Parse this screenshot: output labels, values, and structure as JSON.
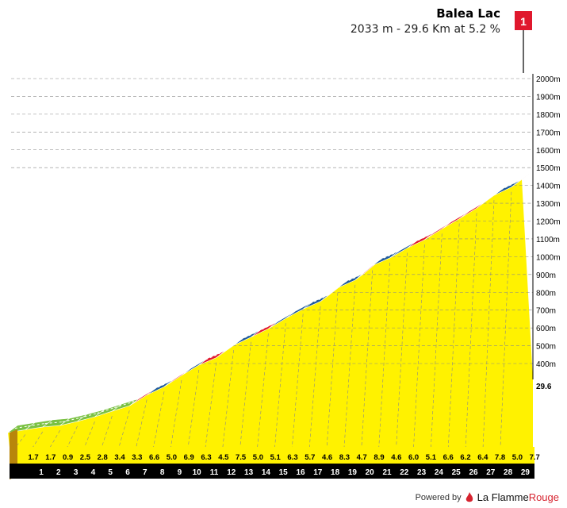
{
  "header": {
    "name": "Balea Lac",
    "subtitle": "2033 m - 29.6 Km at 5.2 %"
  },
  "marker": {
    "label": "1",
    "color": "#e0182d"
  },
  "footer": {
    "powered_by": "Powered by",
    "brand_a": "La Flamme",
    "brand_b": "Rouge"
  },
  "colors": {
    "fill": "#fff200",
    "front": "#000000",
    "wall": "#b8860b",
    "green": "#7ac143",
    "blue": "#1f5a9a",
    "red": "#e0182d",
    "grid": "#888888"
  },
  "chart_data": {
    "type": "area",
    "title": "Balea Lac",
    "xlabel": "",
    "ylabel": "",
    "x_ticks": [
      "1",
      "2",
      "3",
      "4",
      "5",
      "6",
      "7",
      "8",
      "9",
      "10",
      "11",
      "12",
      "13",
      "14",
      "15",
      "16",
      "17",
      "18",
      "19",
      "20",
      "21",
      "22",
      "23",
      "24",
      "25",
      "26",
      "27",
      "28",
      "29"
    ],
    "end_km_label": "29.6",
    "y_ticks": [
      "400m",
      "500m",
      "600m",
      "700m",
      "800m",
      "900m",
      "1000m",
      "1100m",
      "1200m",
      "1300m",
      "1400m",
      "1500m",
      "1600m",
      "1700m",
      "1800m",
      "1900m",
      "2000m"
    ],
    "ylim": [
      400,
      2000
    ],
    "km_gradients": [
      1.7,
      1.7,
      0.9,
      2.5,
      2.8,
      3.4,
      3.3,
      6.6,
      5.0,
      6.9,
      6.3,
      4.5,
      7.5,
      5.0,
      5.1,
      6.3,
      5.7,
      4.6,
      8.3,
      4.7,
      8.9,
      4.6,
      6.0,
      5.1,
      6.6,
      6.2,
      6.4,
      7.8,
      5.0,
      7.7
    ],
    "gradient_labels": [
      "1.7",
      "1.7",
      "0.9",
      "2.5",
      "2.8",
      "3.4",
      "3.3",
      "6.6",
      "5.0",
      "6.9",
      "6.3",
      "4.5",
      "7.5",
      "5.0",
      "5.1",
      "6.3",
      "5.7",
      "4.6",
      "8.3",
      "4.7",
      "8.9",
      "4.6",
      "6.0",
      "5.1",
      "6.6",
      "6.2",
      "6.4",
      "7.8",
      "5.0",
      "7.7"
    ],
    "segment_colors": [
      "green",
      "green",
      "green",
      "green",
      "green",
      "green",
      "green",
      "red",
      "blue",
      "red",
      "blue",
      "red",
      "blue",
      "blue",
      "red",
      "blue",
      "blue",
      "blue",
      "red",
      "blue",
      "red",
      "blue",
      "blue",
      "red",
      "red",
      "red",
      "red",
      "red",
      "blue",
      "red"
    ],
    "summit_elevation": 2033,
    "distance_km": 29.6,
    "avg_gradient": 5.2
  }
}
